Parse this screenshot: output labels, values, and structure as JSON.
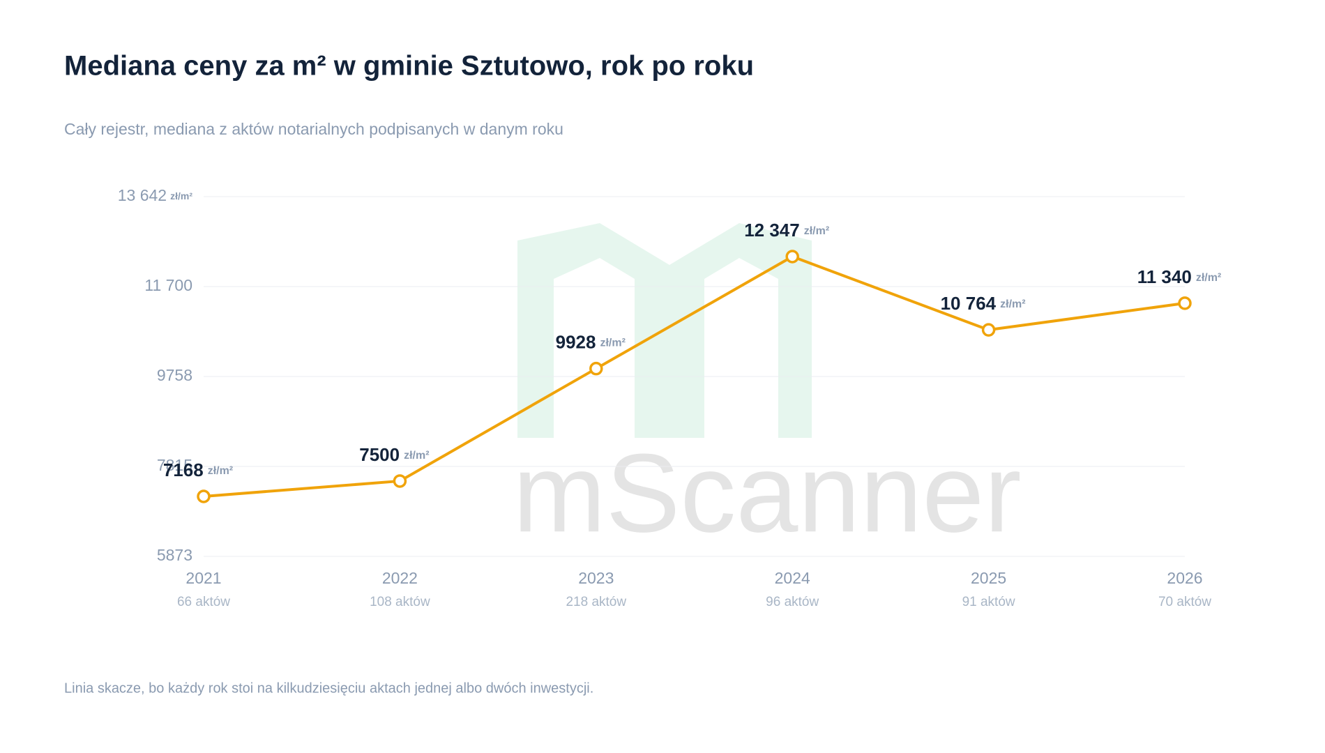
{
  "chart_data": {
    "type": "line",
    "title": "Mediana ceny za m² w gminie Sztutowo, rok po roku",
    "subtitle": "Cały rejestr, mediana z aktów notarialnych podpisanych w danym roku",
    "unit": "zł/m²",
    "categories": [
      "2021",
      "2022",
      "2023",
      "2024",
      "2025",
      "2026"
    ],
    "sublabels": [
      "66 aktów",
      "108 aktów",
      "218 aktów",
      "96 aktów",
      "91 aktów",
      "70 aktów"
    ],
    "values": [
      7168,
      7500,
      9928,
      12347,
      10764,
      11340
    ],
    "value_labels": [
      "7168",
      "7500",
      "9928",
      "12 347",
      "10 764",
      "11 340"
    ],
    "color": "#f0a30a",
    "ylim": [
      5873,
      13642
    ],
    "yticks": [
      5873,
      7815,
      9758,
      {
        "value": 11700,
        "label": "11 700"
      },
      {
        "value": 13642,
        "label": "13 642"
      }
    ],
    "grid": true,
    "watermark": "mScanner",
    "note": "Linia skacze, bo każdy rok stoi na kilkudziesięciu aktach jednej albo dwóch inwestycji."
  }
}
